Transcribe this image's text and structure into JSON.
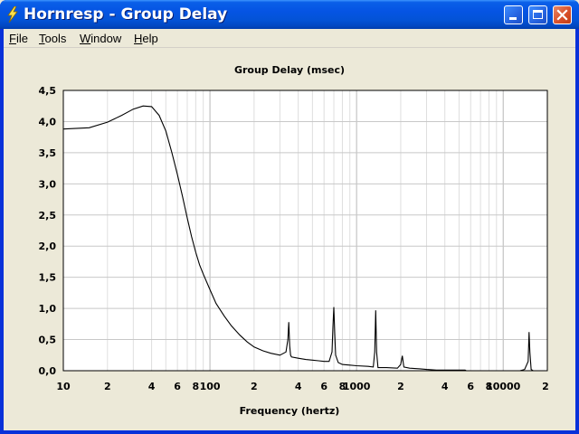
{
  "window": {
    "title": "Hornresp - Group Delay",
    "app_icon": "lightning-bolt-icon",
    "controls": [
      "minimize-icon",
      "maximize-icon",
      "close-icon"
    ]
  },
  "menu": {
    "items": [
      {
        "label": "File",
        "mnemonic": "F",
        "rest": "ile"
      },
      {
        "label": "Tools",
        "mnemonic": "T",
        "rest": "ools"
      },
      {
        "label": "Window",
        "mnemonic": "W",
        "rest": "indow"
      },
      {
        "label": "Help",
        "mnemonic": "H",
        "rest": "elp"
      }
    ]
  },
  "chart_data": {
    "type": "line",
    "title": "Group Delay (msec)",
    "xlabel": "Frequency (hertz)",
    "ylabel": "",
    "x_scale": "log",
    "xlim": [
      10,
      20000
    ],
    "ylim": [
      0,
      4.5
    ],
    "grid": true,
    "y_ticks": [
      "0,0",
      "0,5",
      "1,0",
      "1,5",
      "2,0",
      "2,5",
      "3,0",
      "3,5",
      "4,0",
      "4,5"
    ],
    "x_ticks": [
      "10",
      "2",
      "4",
      "6",
      "8",
      "100",
      "2",
      "4",
      "6",
      "8",
      "1000",
      "2",
      "4",
      "6",
      "8",
      "10000",
      "2"
    ],
    "series": [
      {
        "x": [
          10,
          15,
          20,
          25,
          30,
          35,
          40,
          45,
          50,
          55,
          60,
          65,
          70,
          75,
          80,
          85,
          90,
          100,
          110,
          125,
          140,
          160,
          180,
          200,
          230,
          260,
          300,
          330,
          340,
          345,
          350,
          355,
          360,
          400,
          450,
          500,
          550,
          600,
          650,
          680,
          690,
          700,
          710,
          720,
          750,
          800,
          900,
          1000,
          1200,
          1300,
          1330,
          1350,
          1370,
          1400,
          1600,
          1900,
          2000,
          2050,
          2100,
          2300,
          2700,
          3000,
          3500,
          5500,
          5600,
          13000,
          14000,
          14800,
          15000,
          15200,
          15500,
          16000
        ],
        "y": [
          3.88,
          3.9,
          3.99,
          4.1,
          4.2,
          4.25,
          4.24,
          4.1,
          3.85,
          3.5,
          3.15,
          2.8,
          2.45,
          2.15,
          1.9,
          1.7,
          1.55,
          1.3,
          1.08,
          0.88,
          0.72,
          0.57,
          0.46,
          0.38,
          0.32,
          0.28,
          0.25,
          0.3,
          0.5,
          0.78,
          0.4,
          0.25,
          0.22,
          0.2,
          0.18,
          0.17,
          0.16,
          0.15,
          0.15,
          0.3,
          0.7,
          1.02,
          0.6,
          0.25,
          0.13,
          0.1,
          0.09,
          0.08,
          0.07,
          0.06,
          0.3,
          0.97,
          0.3,
          0.05,
          0.05,
          0.04,
          0.1,
          0.24,
          0.06,
          0.04,
          0.03,
          0.02,
          0.01,
          0.01,
          0.0,
          0.0,
          0.02,
          0.15,
          0.62,
          0.3,
          0.02,
          0.0
        ]
      }
    ]
  }
}
